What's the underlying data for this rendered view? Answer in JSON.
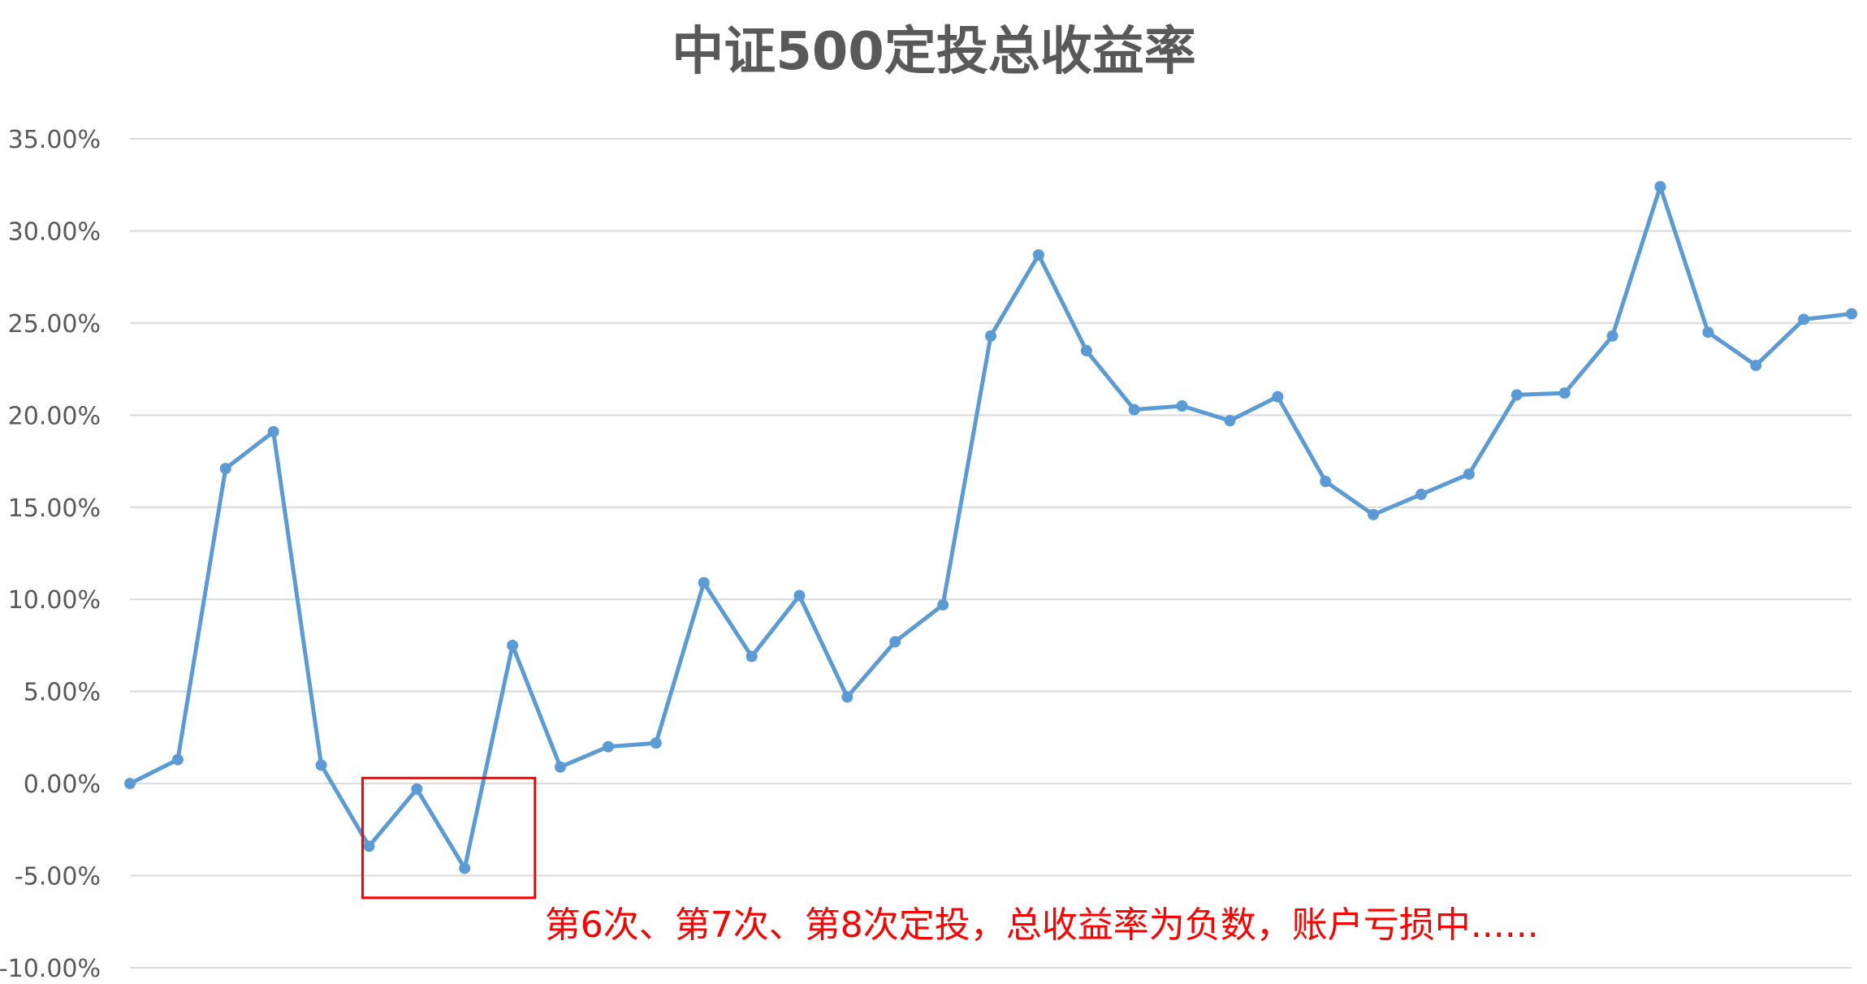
{
  "chart_data": {
    "type": "line",
    "title": "中证500定投总收益率",
    "xlabel": "",
    "ylabel": "",
    "ylim": [
      -0.1,
      0.35
    ],
    "yticks": [
      {
        "value": 0.35,
        "label": "35.00%"
      },
      {
        "value": 0.3,
        "label": "30.00%"
      },
      {
        "value": 0.25,
        "label": "25.00%"
      },
      {
        "value": 0.2,
        "label": "20.00%"
      },
      {
        "value": 0.15,
        "label": "15.00%"
      },
      {
        "value": 0.1,
        "label": "10.00%"
      },
      {
        "value": 0.05,
        "label": "5.00%"
      },
      {
        "value": 0.0,
        "label": "0.00%"
      },
      {
        "value": -0.05,
        "label": "-5.00%"
      },
      {
        "value": -0.1,
        "label": "-10.00%"
      }
    ],
    "grid": true,
    "legend": "none",
    "series": [
      {
        "color": "#5b9bd5",
        "values": [
          0.0,
          0.013,
          0.171,
          0.191,
          0.01,
          -0.034,
          -0.003,
          -0.046,
          0.075,
          0.009,
          0.02,
          0.022,
          0.109,
          0.069,
          0.102,
          0.047,
          0.077,
          0.097,
          0.243,
          0.287,
          0.235,
          0.203,
          0.205,
          0.197,
          0.21,
          0.164,
          0.146,
          0.157,
          0.168,
          0.211,
          0.212,
          0.243,
          0.324,
          0.245,
          0.227,
          0.252,
          0.255
        ]
      }
    ],
    "annotation": {
      "text": "第6次、第7次、第8次定投，总收益率为负数，账户亏损中......",
      "color": "#ff0000",
      "highlight_points": [
        6,
        7,
        8
      ]
    }
  }
}
